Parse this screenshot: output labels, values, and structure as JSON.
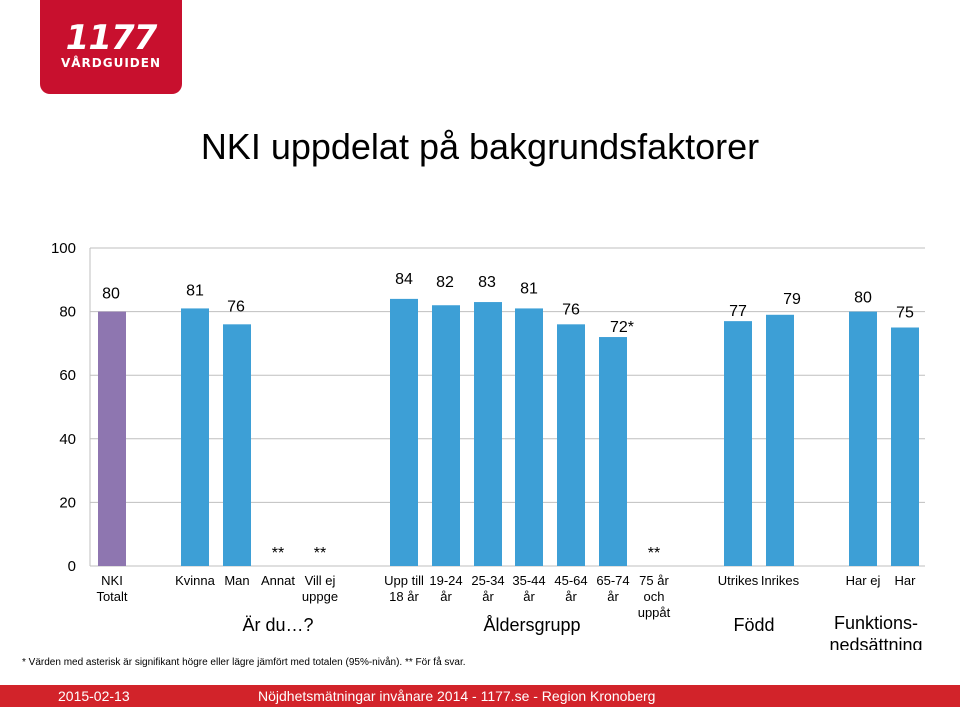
{
  "logo": {
    "number": "1177",
    "subtitle": "VÅRDGUIDEN"
  },
  "title": "NKI uppdelat på bakgrundsfaktorer",
  "colors": {
    "accent": "#3d9fd6",
    "total": "#8e76b0",
    "footer": "#d2232a"
  },
  "chart_data": {
    "type": "bar",
    "ylim": [
      0,
      100
    ],
    "yticks": [
      "0",
      "20",
      "40",
      "60",
      "80",
      "100"
    ],
    "categories": [
      {
        "label": [
          "NKI",
          "Totalt"
        ],
        "value": 80,
        "value_label": "80",
        "color": "total"
      },
      {
        "label": [
          "Kvinna"
        ],
        "value": 81,
        "value_label": "81"
      },
      {
        "label": [
          "Man"
        ],
        "value": 76,
        "value_label": "76"
      },
      {
        "label": [
          "Annat"
        ],
        "value": null,
        "value_label": "**"
      },
      {
        "label": [
          "Vill ej",
          "uppge"
        ],
        "value": null,
        "value_label": "**"
      },
      {
        "label": [
          "Upp till",
          "18 år"
        ],
        "value": 84,
        "value_label": "84"
      },
      {
        "label": [
          "19-24",
          "år"
        ],
        "value": 82,
        "value_label": "82"
      },
      {
        "label": [
          "25-34",
          "år"
        ],
        "value": 83,
        "value_label": "83"
      },
      {
        "label": [
          "35-44",
          "år"
        ],
        "value": 81,
        "value_label": "81"
      },
      {
        "label": [
          "45-64",
          "år"
        ],
        "value": 76,
        "value_label": "76"
      },
      {
        "label": [
          "65-74",
          "år"
        ],
        "value": 72,
        "value_label": "72*"
      },
      {
        "label": [
          "75 år",
          "och",
          "uppåt"
        ],
        "value": null,
        "value_label": "**"
      },
      {
        "label": [
          "Utrikes"
        ],
        "value": 77,
        "value_label": "77"
      },
      {
        "label": [
          "Inrikes"
        ],
        "value": 79,
        "value_label": "79"
      },
      {
        "label": [
          "Har ej"
        ],
        "value": 80,
        "value_label": "80"
      },
      {
        "label": [
          "Har"
        ],
        "value": 75,
        "value_label": "75"
      }
    ],
    "groups": [
      {
        "label": [
          "Är du…?"
        ]
      },
      {
        "label": [
          "Åldersgrupp"
        ]
      },
      {
        "label": [
          "Född"
        ]
      },
      {
        "label": [
          "Funktions-",
          "nedsättning"
        ]
      }
    ]
  },
  "footnote": "* Värden med asterisk är signifikant högre eller lägre jämfört med totalen (95%-nivån).   ** För få svar.",
  "footer": {
    "date": "2015-02-13",
    "text": "Nöjdhetsmätningar invånare 2014 - 1177.se - Region Kronoberg"
  }
}
